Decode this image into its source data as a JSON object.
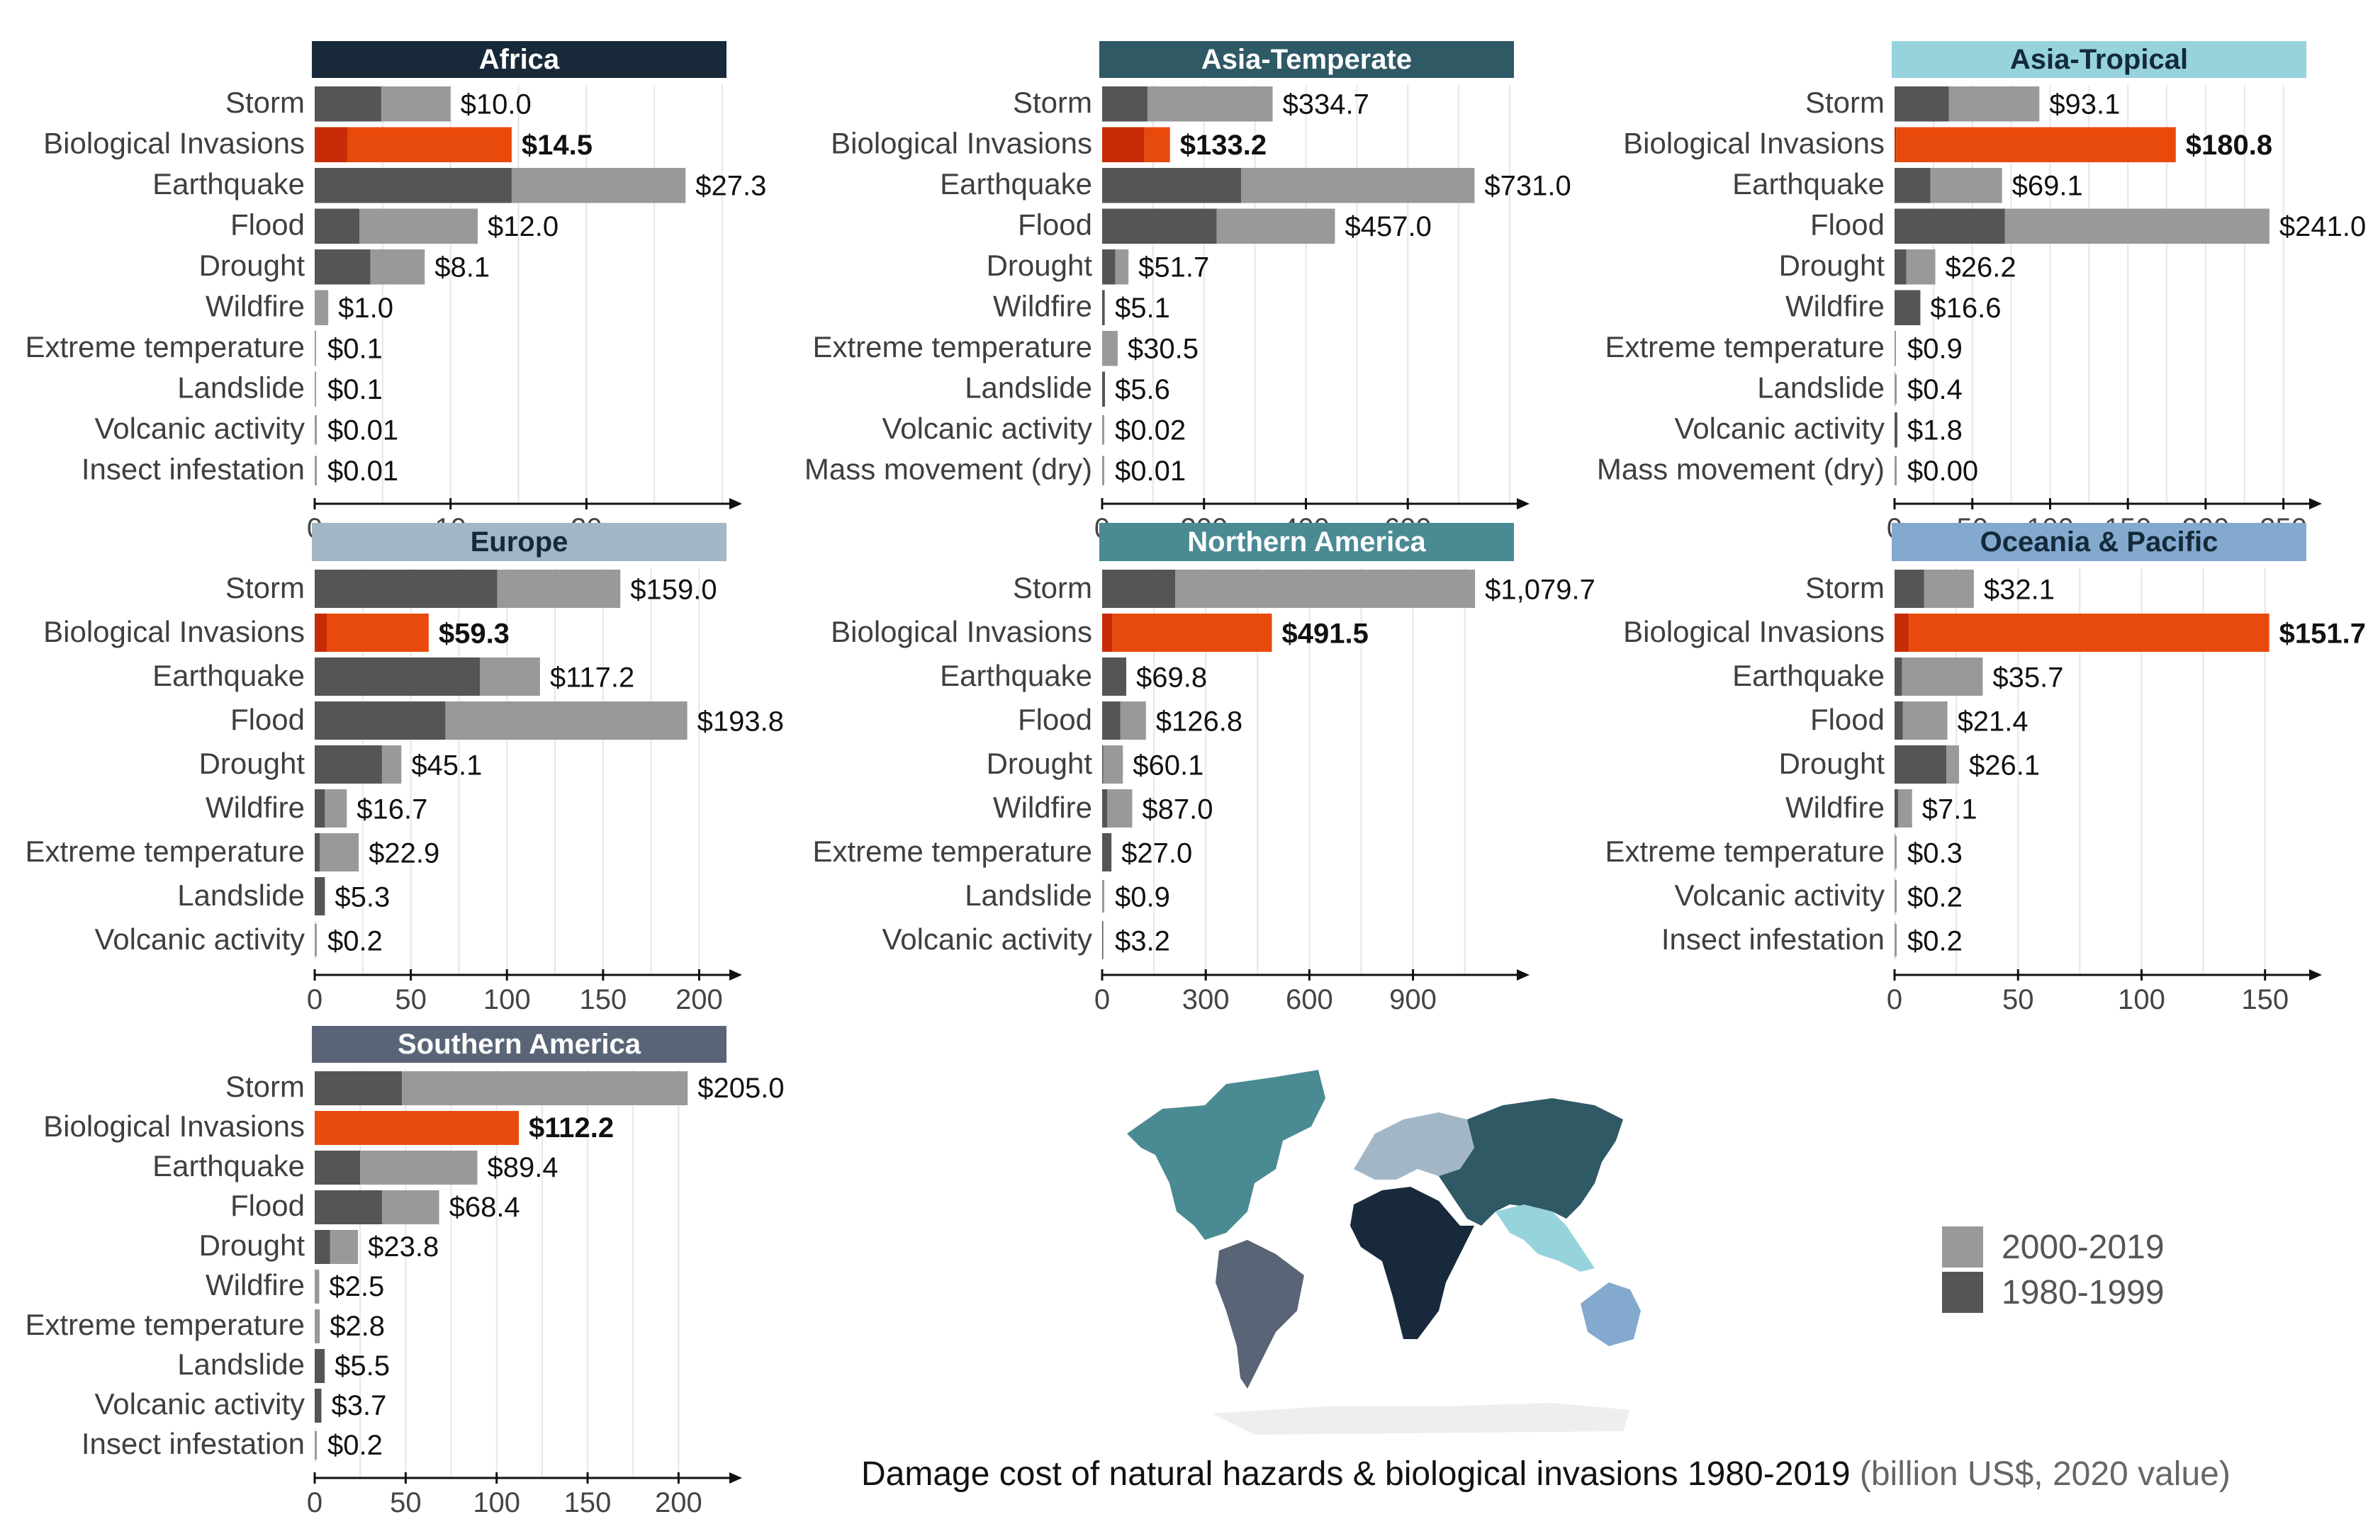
{
  "caption": {
    "main": "Damage cost of natural hazards & biological invasions 1980-2019",
    "unit": "(billion US$, 2020 value)"
  },
  "legend": [
    {
      "label": "2000-2019",
      "color": "#999999"
    },
    {
      "label": "1980-1999",
      "color": "#555555"
    }
  ],
  "colors": {
    "recent": "#999999",
    "early": "#555555",
    "bio_recent": "#e84a0c",
    "bio_early": "#c72c06",
    "grid": "#e6e6e6"
  },
  "map": {
    "regions": [
      {
        "name": "Northern America",
        "color": "#4a8a93"
      },
      {
        "name": "Southern America",
        "color": "#5a6477"
      },
      {
        "name": "Europe",
        "color": "#a3b6c6"
      },
      {
        "name": "Africa",
        "color": "#17293a"
      },
      {
        "name": "Asia-Temperate",
        "color": "#2e5965"
      },
      {
        "name": "Asia-Tropical",
        "color": "#96d3dd"
      },
      {
        "name": "Oceania & Pacific",
        "color": "#84a9cf"
      },
      {
        "name": "Antarctica",
        "color": "#eeeeee"
      }
    ]
  },
  "chart_data": [
    {
      "type": "bar",
      "orientation": "horizontal-stacked",
      "title": "Africa",
      "header_color": "#18293a",
      "header_text_color": "#ffffff",
      "categories": [
        "Storm",
        "Biological Invasions",
        "Earthquake",
        "Flood",
        "Drought",
        "Wildfire",
        "Extreme temperature",
        "Landslide",
        "Volcanic activity",
        "Insect infestation"
      ],
      "labels": [
        "$10.0",
        "$14.5",
        "$27.3",
        "$12.0",
        "$8.1",
        "$1.0",
        "$0.1",
        "$0.1",
        "$0.01",
        "$0.01"
      ],
      "totals": [
        10.0,
        14.5,
        27.3,
        12.0,
        8.1,
        1.0,
        0.1,
        0.1,
        0.01,
        0.01
      ],
      "series": [
        {
          "name": "1980-1999",
          "values": [
            4.9,
            2.4,
            14.5,
            3.3,
            4.1,
            0,
            0,
            0,
            0,
            0
          ]
        },
        {
          "name": "2000-2019",
          "values": [
            5.1,
            12.1,
            12.8,
            8.7,
            4.0,
            1.0,
            0.1,
            0.1,
            0.01,
            0.01
          ]
        }
      ],
      "xticks": [
        0,
        10,
        20
      ],
      "xlim": [
        0,
        30
      ],
      "xlabel": "",
      "ylabel": ""
    },
    {
      "type": "bar",
      "orientation": "horizontal-stacked",
      "title": "Asia-Temperate",
      "header_color": "#2e5965",
      "header_text_color": "#ffffff",
      "categories": [
        "Storm",
        "Biological Invasions",
        "Earthquake",
        "Flood",
        "Drought",
        "Wildfire",
        "Extreme temperature",
        "Landslide",
        "Volcanic activity",
        "Mass movement (dry)"
      ],
      "labels": [
        "$334.7",
        "$133.2",
        "$731.0",
        "$457.0",
        "$51.7",
        "$5.1",
        "$30.5",
        "$5.6",
        "$0.02",
        "$0.01"
      ],
      "totals": [
        334.7,
        133.2,
        731.0,
        457.0,
        51.7,
        5.1,
        30.5,
        5.6,
        0.02,
        0.01
      ],
      "series": [
        {
          "name": "1980-1999",
          "values": [
            89,
            83,
            273,
            225,
            26,
            5.1,
            0,
            5.6,
            0,
            0
          ]
        },
        {
          "name": "2000-2019",
          "values": [
            245.7,
            50.2,
            458,
            232,
            25.7,
            0,
            30.5,
            0,
            0.02,
            0.01
          ]
        }
      ],
      "xticks": [
        0,
        200,
        400,
        600
      ],
      "xlim": [
        0,
        800
      ],
      "xlabel": "",
      "ylabel": ""
    },
    {
      "type": "bar",
      "orientation": "horizontal-stacked",
      "title": "Asia-Tropical",
      "header_color": "#96d3dd",
      "header_text_color": "#142a3a",
      "categories": [
        "Storm",
        "Biological Invasions",
        "Earthquake",
        "Flood",
        "Drought",
        "Wildfire",
        "Extreme temperature",
        "Landslide",
        "Volcanic activity",
        "Mass movement (dry)"
      ],
      "labels": [
        "$93.1",
        "$180.8",
        "$69.1",
        "$241.0",
        "$26.2",
        "$16.6",
        "$0.9",
        "$0.4",
        "$1.8",
        "$0.00"
      ],
      "totals": [
        93.1,
        180.8,
        69.1,
        241.0,
        26.2,
        16.6,
        0.9,
        0.4,
        1.8,
        0.0
      ],
      "series": [
        {
          "name": "1980-1999",
          "values": [
            35,
            1,
            23,
            71,
            7.5,
            16.6,
            0,
            0,
            1.8,
            0
          ]
        },
        {
          "name": "2000-2019",
          "values": [
            58.1,
            179.8,
            46.1,
            170,
            18.7,
            0,
            0.9,
            0.4,
            0,
            0
          ]
        }
      ],
      "xticks": [
        0,
        50,
        100,
        150,
        200,
        250
      ],
      "xlim": [
        0,
        262
      ],
      "xlabel": "",
      "ylabel": ""
    },
    {
      "type": "bar",
      "orientation": "horizontal-stacked",
      "title": "Europe",
      "header_color": "#a3b6c6",
      "header_text_color": "#142a3a",
      "categories": [
        "Storm",
        "Biological Invasions",
        "Earthquake",
        "Flood",
        "Drought",
        "Wildfire",
        "Extreme temperature",
        "Landslide",
        "Volcanic activity"
      ],
      "labels": [
        "$159.0",
        "$59.3",
        "$117.2",
        "$193.8",
        "$45.1",
        "$16.7",
        "$22.9",
        "$5.3",
        "$0.2"
      ],
      "totals": [
        159.0,
        59.3,
        117.2,
        193.8,
        45.1,
        16.7,
        22.9,
        5.3,
        0.2
      ],
      "series": [
        {
          "name": "1980-1999",
          "values": [
            95,
            6.5,
            86,
            68,
            35,
            5.3,
            2.7,
            5.3,
            0
          ]
        },
        {
          "name": "2000-2019",
          "values": [
            64,
            52.8,
            31.2,
            125.8,
            10.1,
            11.4,
            20.2,
            0,
            0.2
          ]
        }
      ],
      "xticks": [
        0,
        50,
        100,
        150,
        200
      ],
      "xlim": [
        0,
        212
      ],
      "xlabel": "",
      "ylabel": ""
    },
    {
      "type": "bar",
      "orientation": "horizontal-stacked",
      "title": "Northern America",
      "header_color": "#4a8a93",
      "header_text_color": "#ffffff",
      "categories": [
        "Storm",
        "Biological Invasions",
        "Earthquake",
        "Flood",
        "Drought",
        "Wildfire",
        "Extreme temperature",
        "Landslide",
        "Volcanic activity"
      ],
      "labels": [
        "$1,079.7",
        "$491.5",
        "$69.8",
        "$126.8",
        "$60.1",
        "$87.0",
        "$27.0",
        "$0.9",
        "$3.2"
      ],
      "totals": [
        1079.7,
        491.5,
        69.8,
        126.8,
        60.1,
        87.0,
        27.0,
        0.9,
        3.2
      ],
      "series": [
        {
          "name": "1980-1999",
          "values": [
            212,
            30,
            69.8,
            53,
            3,
            15,
            27,
            0,
            3.2
          ]
        },
        {
          "name": "2000-2019",
          "values": [
            867.7,
            461.5,
            0,
            73.8,
            57.1,
            72,
            0,
            0.9,
            0
          ]
        }
      ],
      "xticks": [
        0,
        300,
        600,
        900
      ],
      "xlim": [
        0,
        1180
      ],
      "xlabel": "",
      "ylabel": ""
    },
    {
      "type": "bar",
      "orientation": "horizontal-stacked",
      "title": "Oceania & Pacific",
      "header_color": "#84a9cf",
      "header_text_color": "#142a3a",
      "categories": [
        "Storm",
        "Biological Invasions",
        "Earthquake",
        "Flood",
        "Drought",
        "Wildfire",
        "Extreme temperature",
        "Volcanic activity",
        "Insect infestation"
      ],
      "labels": [
        "$32.1",
        "$151.7",
        "$35.7",
        "$21.4",
        "$26.1",
        "$7.1",
        "$0.3",
        "$0.2",
        "$0.2"
      ],
      "totals": [
        32.1,
        151.7,
        35.7,
        21.4,
        26.1,
        7.1,
        0.3,
        0.2,
        0.2
      ],
      "series": [
        {
          "name": "1980-1999",
          "values": [
            12,
            5.8,
            3,
            3.3,
            21,
            1.5,
            0,
            0,
            0
          ]
        },
        {
          "name": "2000-2019",
          "values": [
            20.1,
            145.9,
            32.7,
            18.1,
            5.1,
            5.6,
            0.3,
            0.2,
            0.2
          ]
        }
      ],
      "xticks": [
        0,
        50,
        100,
        150
      ],
      "xlim": [
        0,
        165
      ],
      "xlabel": "",
      "ylabel": ""
    },
    {
      "type": "bar",
      "orientation": "horizontal-stacked",
      "title": "Southern America",
      "header_color": "#5a6477",
      "header_text_color": "#ffffff",
      "categories": [
        "Storm",
        "Biological Invasions",
        "Earthquake",
        "Flood",
        "Drought",
        "Wildfire",
        "Extreme temperature",
        "Landslide",
        "Volcanic activity",
        "Insect infestation"
      ],
      "labels": [
        "$205.0",
        "$112.2",
        "$89.4",
        "$68.4",
        "$23.8",
        "$2.5",
        "$2.8",
        "$5.5",
        "$3.7",
        "$0.2"
      ],
      "totals": [
        205.0,
        112.2,
        89.4,
        68.4,
        23.8,
        2.5,
        2.8,
        5.5,
        3.7,
        0.2
      ],
      "series": [
        {
          "name": "1980-1999",
          "values": [
            48,
            0,
            25,
            37,
            8.5,
            0,
            0,
            5.5,
            3.7,
            0
          ]
        },
        {
          "name": "2000-2019",
          "values": [
            157,
            112.2,
            64.4,
            31.4,
            15.3,
            2.5,
            2.8,
            0,
            0,
            0.2
          ]
        }
      ],
      "xticks": [
        0,
        50,
        100,
        150,
        200
      ],
      "xlim": [
        0,
        224
      ],
      "xlabel": "",
      "ylabel": ""
    }
  ]
}
